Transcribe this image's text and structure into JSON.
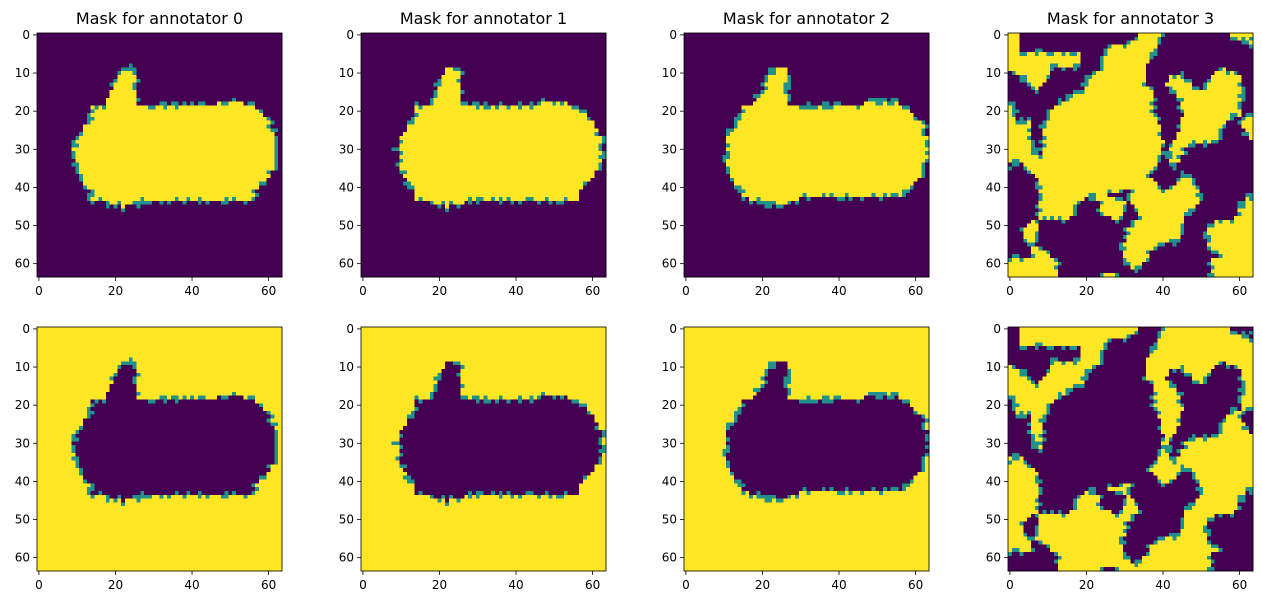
{
  "chart_data": {
    "type": "heatmap",
    "layout": {
      "rows": 2,
      "cols": 4
    },
    "xticks": [
      0,
      20,
      40,
      60
    ],
    "yticks": [
      0,
      10,
      20,
      30,
      40,
      50,
      60
    ],
    "xlim": [
      -0.5,
      63.5
    ],
    "ylim": [
      63.5,
      -0.5
    ],
    "grid_size": 64,
    "colormap": "viridis",
    "colors": {
      "low": "#440154",
      "mid": "#21918c",
      "high": "#fde725",
      "light_mid": "#5ec962"
    },
    "panels": [
      {
        "title": "Mask for annotator 0",
        "annotator": 0,
        "inverted": false
      },
      {
        "title": "Mask for annotator 1",
        "annotator": 1,
        "inverted": false
      },
      {
        "title": "Mask for annotator 2",
        "annotator": 2,
        "inverted": false
      },
      {
        "title": "Mask for annotator 3",
        "annotator": 3,
        "inverted": false
      },
      {
        "title": "",
        "annotator": 0,
        "inverted": true
      },
      {
        "title": "",
        "annotator": 1,
        "inverted": true
      },
      {
        "title": "",
        "annotator": 2,
        "inverted": true
      },
      {
        "title": "",
        "annotator": 3,
        "inverted": true
      }
    ]
  }
}
